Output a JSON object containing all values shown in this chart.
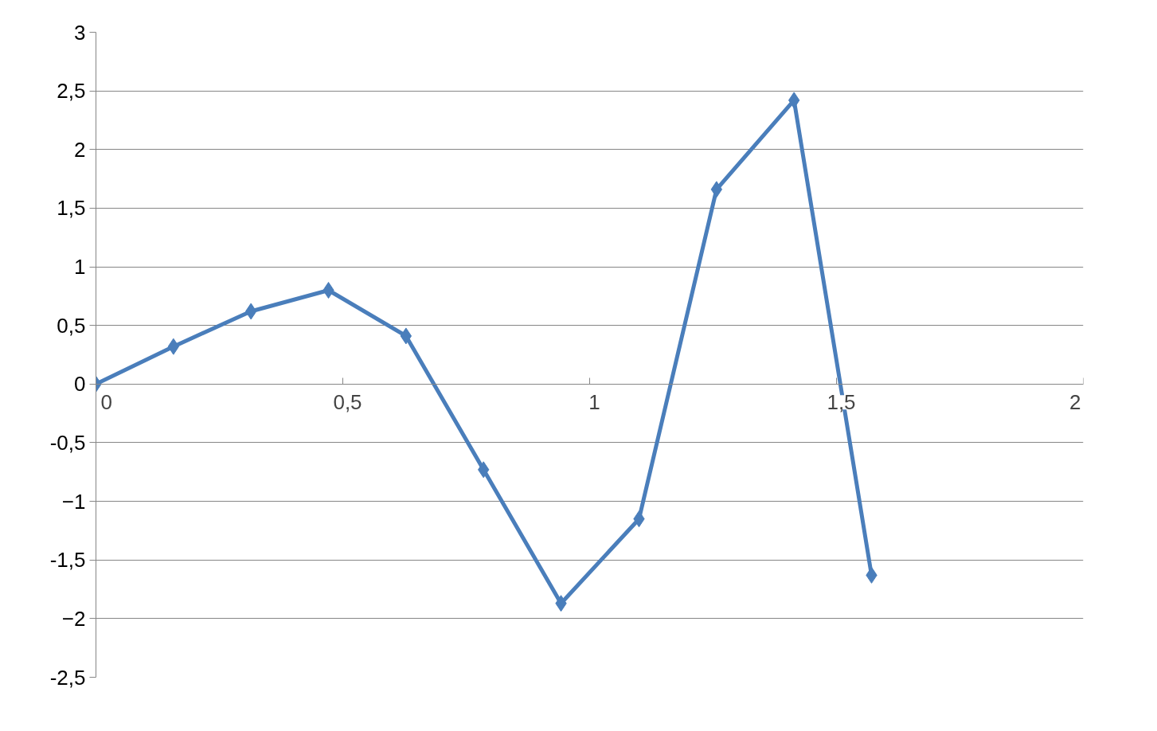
{
  "chart_data": {
    "type": "line",
    "marker": "diamond",
    "grid": "y",
    "x": [
      0,
      0.157,
      0.314,
      0.471,
      0.628,
      0.785,
      0.942,
      1.1,
      1.257,
      1.414,
      1.571
    ],
    "series": [
      {
        "color": "#4a7ebb",
        "values": [
          0,
          0.32,
          0.62,
          0.8,
          0.41,
          -0.73,
          -1.87,
          -1.15,
          1.66,
          2.42,
          -1.63
        ]
      }
    ],
    "xlim": [
      0,
      2
    ],
    "ylim": [
      -2.5,
      3
    ],
    "xticks": [
      0,
      {
        "value": 0.5,
        "label": "0,5"
      },
      1,
      {
        "value": 1.5,
        "label": "1,5"
      },
      2
    ],
    "yticks": [
      {
        "value": -2.5,
        "label": "-2,5"
      },
      -2,
      {
        "value": -1.5,
        "label": "-1,5"
      },
      -1,
      {
        "value": -0.5,
        "label": "-0,5"
      },
      0,
      {
        "value": 0.5,
        "label": "0,5"
      },
      1,
      {
        "value": 1.5,
        "label": "1,5"
      },
      2,
      {
        "value": 2.5,
        "label": "2,5"
      },
      3
    ]
  }
}
